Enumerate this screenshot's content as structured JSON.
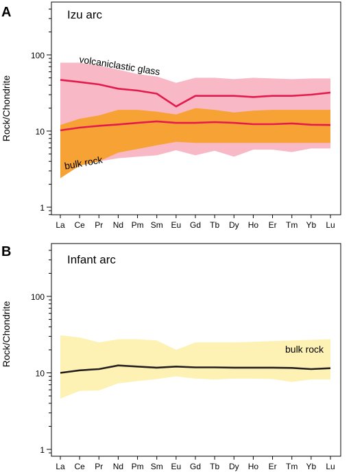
{
  "chart_data": [
    {
      "type": "line",
      "panel_label": "A",
      "title": "Izu arc",
      "ylabel": "Rock/Chondrite",
      "yscale": "log",
      "ylim": [
        0.7,
        400
      ],
      "yticks": [
        1,
        10,
        100
      ],
      "categories": [
        "La",
        "Ce",
        "Pr",
        "Nd",
        "Pm",
        "Sm",
        "Eu",
        "Gd",
        "Tb",
        "Dy",
        "Ho",
        "Er",
        "Tm",
        "Yb",
        "Lu"
      ],
      "bands": [
        {
          "name": "volcaniclastic glass",
          "color": "#f9b8c6",
          "upper": [
            79,
            79,
            72,
            64,
            56,
            52,
            43,
            50,
            50,
            48,
            50,
            49,
            48,
            49,
            49
          ],
          "lower": [
            2.8,
            3.6,
            4.0,
            4.4,
            4.6,
            4.8,
            5.6,
            4.8,
            5.5,
            4.6,
            5.7,
            5.7,
            5.3,
            5.9,
            5.9
          ]
        },
        {
          "name": "bulk rock",
          "color": "#f7a234",
          "upper": [
            12,
            14.5,
            16,
            19,
            19,
            18,
            16.5,
            20,
            19,
            17.5,
            18.5,
            19,
            19,
            19,
            19
          ],
          "lower": [
            2.4,
            3.5,
            4.0,
            5.2,
            5.8,
            6.5,
            7.2,
            7.0,
            7.0,
            7.0,
            7.0,
            7.0,
            7.0,
            7.0,
            7.0
          ]
        }
      ],
      "series": [
        {
          "color": "#e31b4d",
          "values": [
            47,
            44,
            41,
            36,
            34,
            31,
            21,
            29,
            29,
            29,
            28,
            29,
            29,
            30,
            32
          ]
        },
        {
          "color": "#e31b4d",
          "values": [
            10.2,
            11.1,
            11.7,
            12.2,
            12.8,
            13.4,
            12.8,
            12.8,
            13.1,
            12.8,
            12.3,
            12.3,
            12.6,
            12.1,
            12.0
          ]
        }
      ],
      "annotations": [
        {
          "text": "volcaniclastic glass"
        },
        {
          "text": "bulk rock"
        }
      ]
    },
    {
      "type": "line",
      "panel_label": "B",
      "title": "Infant arc",
      "ylabel": "Rock/Chondrite",
      "yscale": "log",
      "ylim": [
        0.7,
        400
      ],
      "yticks": [
        1,
        10,
        100
      ],
      "categories": [
        "La",
        "Ce",
        "Pr",
        "Nd",
        "Pm",
        "Sm",
        "Eu",
        "Gd",
        "Tb",
        "Dy",
        "Ho",
        "Er",
        "Tm",
        "Yb",
        "Lu"
      ],
      "bands": [
        {
          "name": "bulk rock",
          "color": "#fdf2b3",
          "upper": [
            31,
            29,
            25,
            27.5,
            27.5,
            26.5,
            20,
            25,
            25,
            25,
            25.5,
            26,
            26.5,
            27,
            27.5
          ],
          "lower": [
            4.6,
            5.8,
            5.9,
            7.3,
            7.8,
            8.3,
            9.0,
            8.4,
            8.2,
            8.4,
            8.4,
            8.3,
            7.6,
            8.2,
            8.2
          ]
        }
      ],
      "series": [
        {
          "color": "#231f20",
          "values": [
            10.0,
            10.8,
            11.2,
            12.5,
            12.1,
            11.7,
            12.1,
            11.8,
            11.8,
            11.7,
            11.7,
            11.7,
            11.6,
            11.2,
            11.5
          ]
        }
      ],
      "annotations": [
        {
          "text": "bulk rock"
        }
      ]
    }
  ]
}
